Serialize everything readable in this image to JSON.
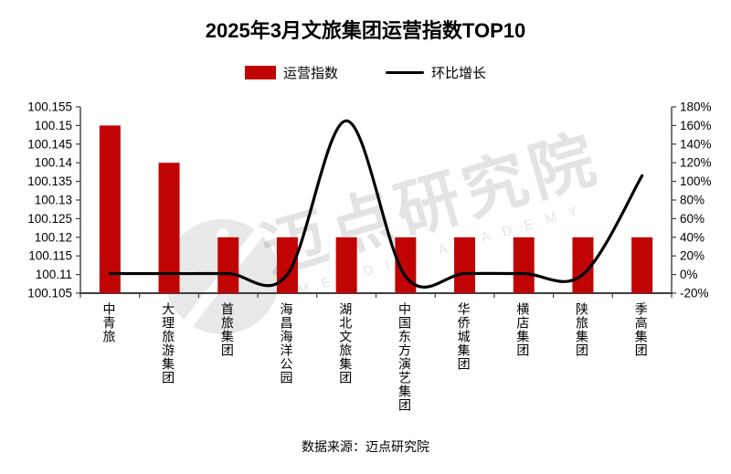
{
  "title": "2025年3月文旅集团运营指数TOP10",
  "legend": {
    "bar_label": "运营指数",
    "line_label": "环比增长"
  },
  "source": "数据来源：迈点研究院",
  "watermark": {
    "brand_text": "迈点研究院",
    "latin_text": "MEADIN ACADEMY"
  },
  "colors": {
    "bar": "#c00404",
    "line": "#000000",
    "axis": "#3f3f3f",
    "text": "#000000"
  },
  "chart_data": {
    "type": "bar",
    "title": "2025年3月文旅集团运营指数TOP10",
    "categories": [
      "中青旅",
      "大理旅游集团",
      "首旅集团",
      "海昌海洋公园",
      "湖北文旅集团",
      "中国东方演艺集团",
      "华侨城集团",
      "横店集团",
      "陕旅集团",
      "季高集团"
    ],
    "series": [
      {
        "name": "运营指数",
        "type": "bar",
        "axis": "left",
        "values": [
          100.15,
          100.14,
          100.12,
          100.12,
          100.12,
          100.12,
          100.12,
          100.12,
          100.12,
          100.12
        ]
      },
      {
        "name": "环比增长",
        "type": "line",
        "axis": "right",
        "unit": "%",
        "values": [
          1,
          1,
          1,
          0,
          165,
          -2,
          1,
          1,
          0,
          106
        ]
      }
    ],
    "left_axis": {
      "min": 100.105,
      "max": 100.155,
      "step": 0.005,
      "ticks": [
        "100.105",
        "100.11",
        "100.115",
        "100.12",
        "100.125",
        "100.13",
        "100.135",
        "100.14",
        "100.145",
        "100.15",
        "100.155"
      ]
    },
    "right_axis": {
      "min": -20,
      "max": 180,
      "step": 20,
      "ticks": [
        "-20%",
        "0%",
        "20%",
        "40%",
        "60%",
        "80%",
        "100%",
        "120%",
        "140%",
        "160%",
        "180%"
      ]
    },
    "grid": "off",
    "legend_position": "top"
  }
}
